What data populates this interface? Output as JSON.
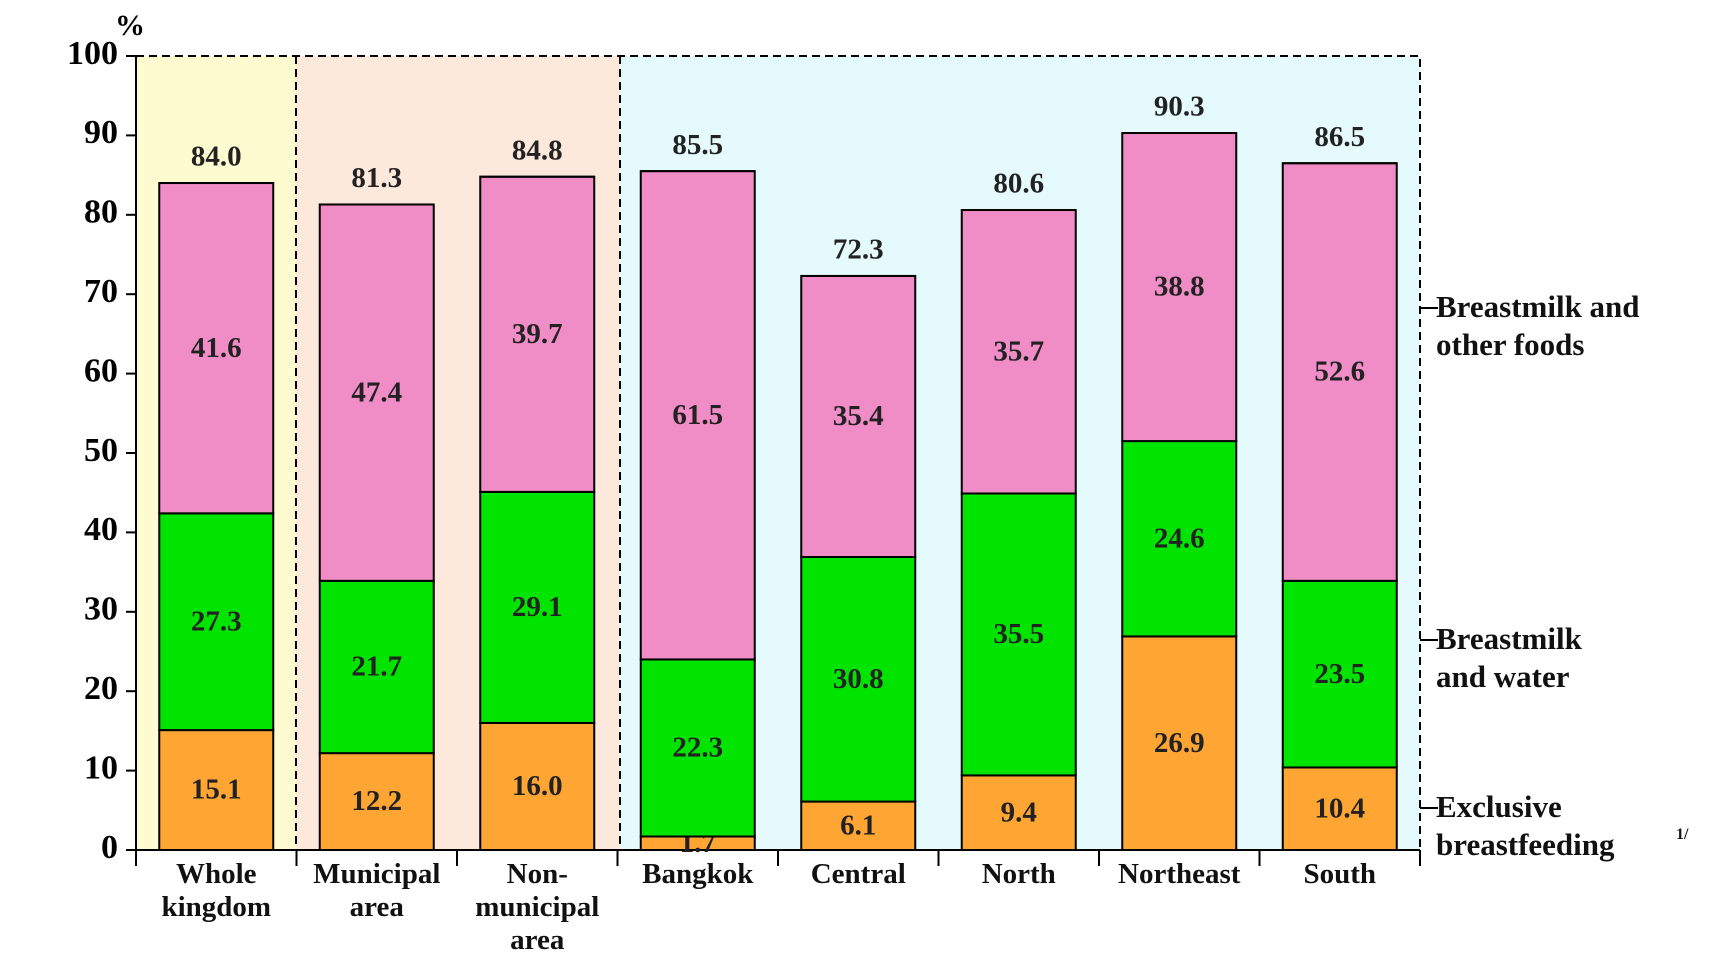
{
  "chart_data": {
    "type": "stacked_bar",
    "y_unit": "%",
    "categories": [
      "Whole\nkingdom",
      "Municipal\narea",
      "Non-\nmunicipal\narea",
      "Bangkok",
      "Central",
      "North",
      "Northeast",
      "South"
    ],
    "series": [
      {
        "name": "Exclusive\nbreastfeeding",
        "color": "#ffa533",
        "values": [
          15.1,
          12.2,
          16.0,
          1.7,
          6.1,
          9.4,
          26.9,
          10.4
        ],
        "value_labels": [
          "15.1",
          "12.2",
          "16.0",
          "1.7",
          "6.1",
          "9.4",
          "26.9",
          "10.4"
        ]
      },
      {
        "name": "Breastmilk\nand water",
        "color": "#00e400",
        "values": [
          27.3,
          21.7,
          29.1,
          22.3,
          30.8,
          35.5,
          24.6,
          23.5
        ],
        "value_labels": [
          "27.3",
          "21.7",
          "29.1",
          "22.3",
          "30.8",
          "35.5",
          "24.6",
          "23.5"
        ]
      },
      {
        "name": "Breastmilk and\nother foods",
        "color": "#f08cc6",
        "values": [
          41.6,
          47.4,
          39.7,
          61.5,
          35.4,
          35.7,
          38.8,
          52.6
        ],
        "value_labels": [
          "41.6",
          "47.4",
          "39.7",
          "61.5",
          "35.4",
          "35.7",
          "38.8",
          "52.6"
        ]
      }
    ],
    "totals": [
      84.0,
      81.3,
      84.8,
      85.5,
      72.3,
      80.6,
      90.3,
      86.5
    ],
    "totals_labels": [
      "84.0",
      "81.3",
      "84.8",
      "85.5",
      "72.3",
      "80.6",
      "90.3",
      "86.5"
    ],
    "footnote_marker": "1/",
    "ylim": [
      0,
      100
    ],
    "yticks": [
      0,
      10,
      20,
      30,
      40,
      50,
      60,
      70,
      80,
      90,
      100
    ]
  }
}
